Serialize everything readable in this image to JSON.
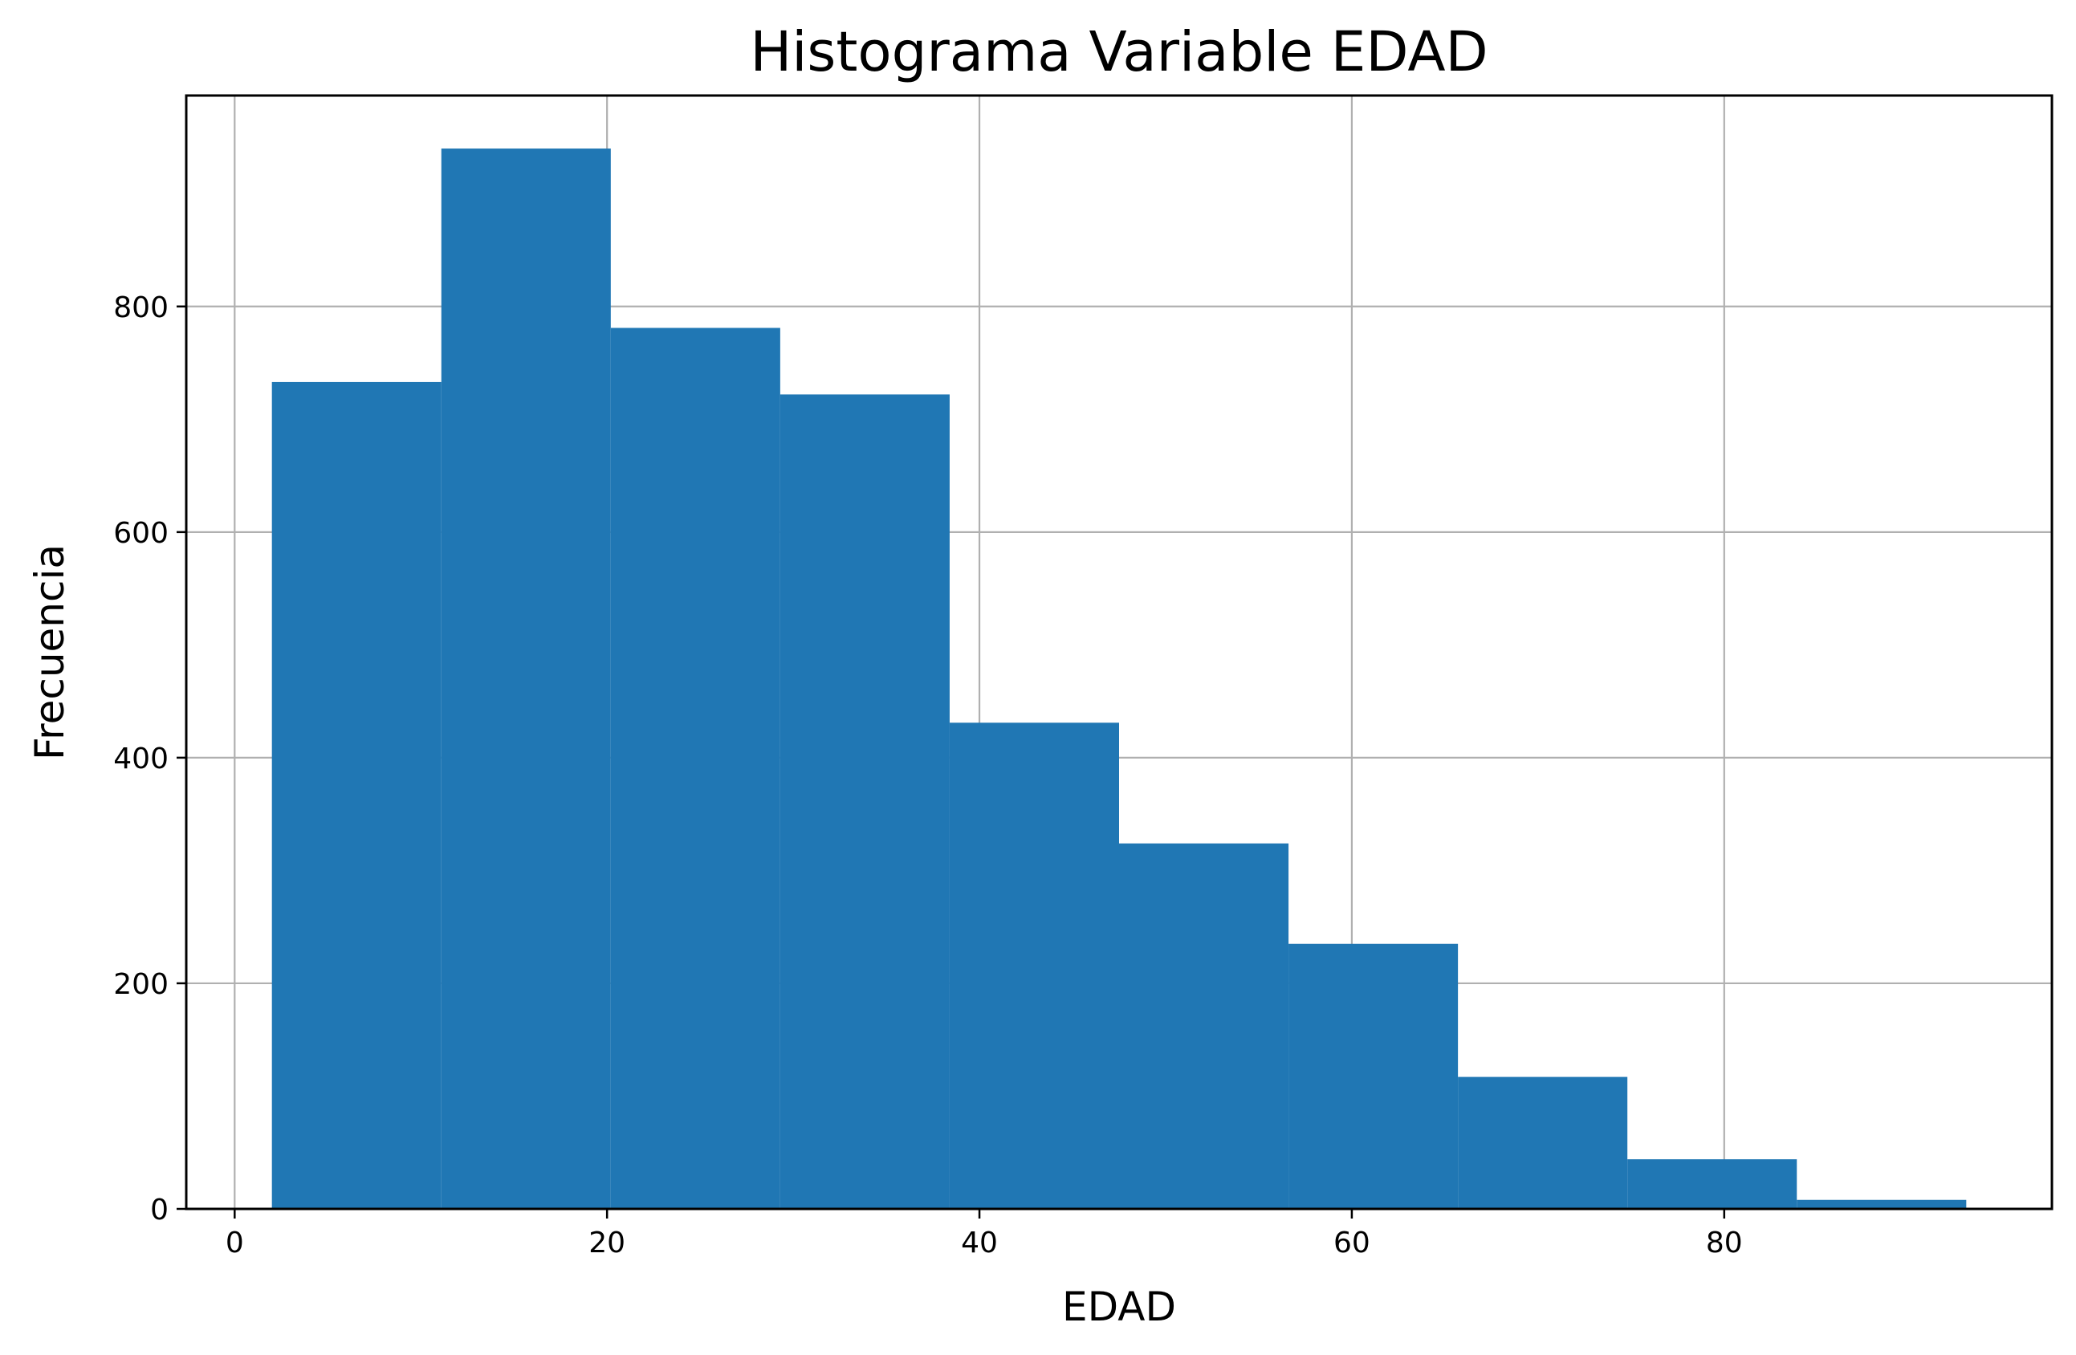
{
  "chart_data": {
    "type": "bar",
    "title": "Histograma Variable EDAD",
    "xlabel": "EDAD",
    "ylabel": "Frecuencia",
    "xlim": [
      -2.6,
      97.6
    ],
    "ylim": [
      0,
      987
    ],
    "grid": true,
    "bar_color": "#2077b4",
    "x_ticks": [
      0,
      20,
      40,
      60,
      80
    ],
    "y_ticks": [
      0,
      200,
      400,
      600,
      800
    ],
    "bins": [
      {
        "start": 2.0,
        "end": 11.1,
        "count": 733
      },
      {
        "start": 11.1,
        "end": 20.2,
        "count": 940
      },
      {
        "start": 20.2,
        "end": 29.3,
        "count": 781
      },
      {
        "start": 29.3,
        "end": 38.4,
        "count": 722
      },
      {
        "start": 38.4,
        "end": 47.5,
        "count": 431
      },
      {
        "start": 47.5,
        "end": 56.6,
        "count": 324
      },
      {
        "start": 56.6,
        "end": 65.7,
        "count": 235
      },
      {
        "start": 65.7,
        "end": 74.8,
        "count": 117
      },
      {
        "start": 74.8,
        "end": 83.9,
        "count": 44
      },
      {
        "start": 83.9,
        "end": 93.0,
        "count": 8
      }
    ]
  }
}
